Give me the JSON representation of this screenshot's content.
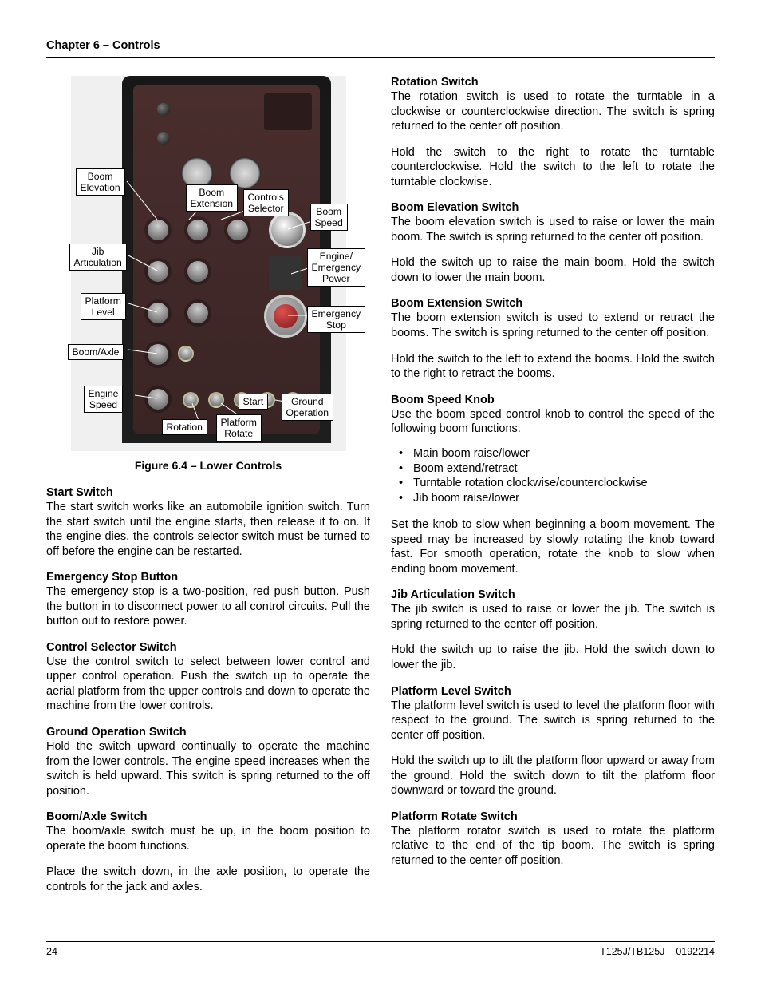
{
  "header": {
    "chapter": "Chapter 6 – Controls"
  },
  "figure": {
    "caption": "Figure 6.4 – Lower Controls",
    "callouts": {
      "boom_elevation": "Boom\nElevation",
      "boom_extension": "Boom\nExtension",
      "controls_selector": "Controls\nSelector",
      "boom_speed": "Boom\nSpeed",
      "jib_articulation": "Jib\nArticulation",
      "engine_emergency_power": "Engine/\nEmergency\nPower",
      "platform_level": "Platform\nLevel",
      "emergency_stop": "Emergency\nStop",
      "boom_axle": "Boom/Axle",
      "engine_speed": "Engine\nSpeed",
      "rotation": "Rotation",
      "platform_rotate": "Platform\nRotate",
      "start": "Start",
      "ground_operation": "Ground\nOperation"
    }
  },
  "left_sections": [
    {
      "title": "Start Switch",
      "paras": [
        "The start switch works like an automobile ignition switch. Turn the start switch until the engine starts, then release it to on. If the engine dies, the controls selector switch must be turned to off before the engine can be restarted."
      ]
    },
    {
      "title": "Emergency Stop Button",
      "paras": [
        "The emergency stop is a two-position, red push button. Push the button in to disconnect power to all control circuits. Pull the button out to restore power."
      ]
    },
    {
      "title": "Control Selector Switch",
      "paras": [
        "Use the control switch to select between lower control and upper control operation. Push the switch up to operate the aerial platform from the upper controls and down to operate the machine from the lower controls."
      ]
    },
    {
      "title": "Ground Operation Switch",
      "paras": [
        "Hold the switch upward continually to operate the machine from the lower controls. The engine speed increases when the switch is held upward. This switch is spring returned to the off position."
      ]
    },
    {
      "title": "Boom/Axle Switch",
      "paras": [
        "The boom/axle switch must be up, in the boom position to operate the boom functions.",
        "Place the switch down, in the axle position, to operate the controls for the jack and axles."
      ]
    }
  ],
  "right_sections": [
    {
      "title": "Rotation Switch",
      "paras": [
        "The rotation switch is used to rotate the turntable in a clockwise or counterclockwise direction. The switch is spring returned to the center off position.",
        "Hold the switch to the right to rotate the turntable counterclockwise. Hold the switch to the left to rotate the turntable clockwise."
      ]
    },
    {
      "title": "Boom Elevation Switch",
      "paras": [
        "The boom elevation switch is used to raise or lower the main boom. The switch is spring returned to the center off position.",
        "Hold the switch up to raise the main boom. Hold the switch down to lower the main boom."
      ]
    },
    {
      "title": "Boom Extension Switch",
      "paras": [
        "The boom extension switch is used to extend or retract the booms. The switch is spring returned to the center off position.",
        "Hold the switch to the left to extend the booms. Hold the switch to the right to retract the booms."
      ]
    },
    {
      "title": "Boom Speed Knob",
      "paras": [
        "Use the boom speed control knob to control the speed of the following boom functions."
      ],
      "bullets": [
        "Main boom raise/lower",
        "Boom extend/retract",
        "Turntable rotation clockwise/counterclockwise",
        "Jib boom raise/lower"
      ],
      "after": [
        "Set the knob to slow when beginning a boom movement. The speed may be increased by slowly rotating the knob toward fast. For smooth operation, rotate the knob to slow when ending boom movement."
      ]
    },
    {
      "title": "Jib Articulation Switch",
      "paras": [
        "The jib switch is used to raise or lower the jib. The switch is spring returned to the center off position.",
        "Hold the switch up to raise the jib. Hold the switch down to lower the jib."
      ]
    },
    {
      "title": "Platform Level Switch",
      "paras": [
        "The platform level switch is used to level the platform floor with respect to the ground. The switch is spring returned to the center off position.",
        "Hold the switch up to tilt the platform floor upward or away from the ground. Hold the switch down to tilt the platform floor downward or toward the ground."
      ]
    },
    {
      "title": "Platform Rotate Switch",
      "paras": [
        "The platform rotator switch is used to rotate the platform relative to the end of the tip boom. The switch is spring returned to the center off position."
      ]
    }
  ],
  "footer": {
    "page": "24",
    "docid": "T125J/TB125J – 0192214"
  },
  "colors": {
    "text": "#000000",
    "bg": "#ffffff",
    "rule": "#000000"
  }
}
